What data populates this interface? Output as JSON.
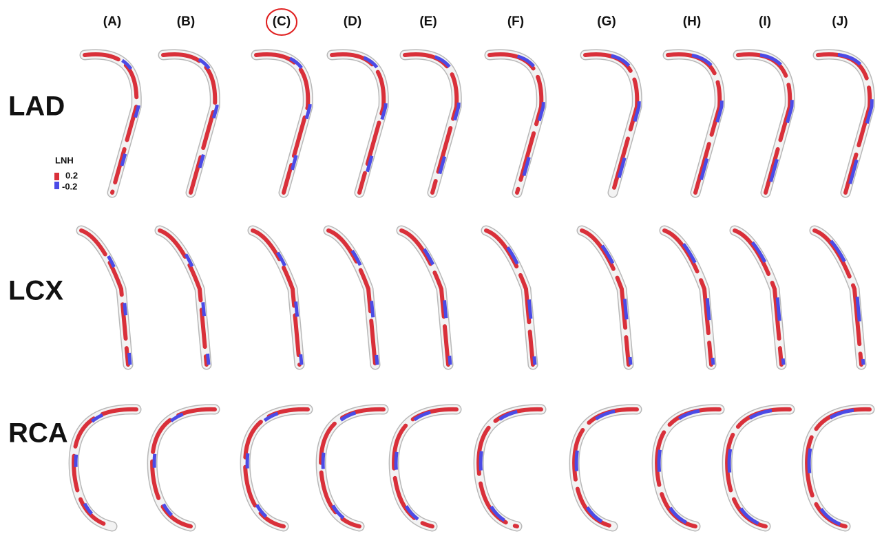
{
  "columns": [
    "(A)",
    "(B)",
    "(C)",
    "(D)",
    "(E)",
    "(F)",
    "(G)",
    "(H)",
    "(I)",
    "(J)"
  ],
  "rows": [
    "LAD",
    "LCX",
    "RCA"
  ],
  "legend": {
    "title": "LNH",
    "max": 0.2,
    "min": -0.2
  }
}
